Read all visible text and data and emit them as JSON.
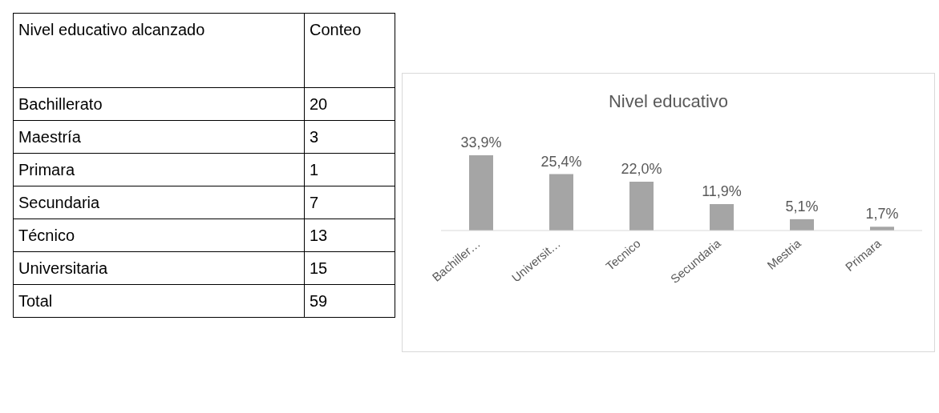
{
  "chart_data": [
    {
      "type": "other",
      "annotations": [
        "Nivel educativo alcanzado",
        "Conteo"
      ],
      "categories": [
        "Bachillerato",
        "Maestría",
        "Primara",
        "Secundaria",
        "Técnico",
        "Universitaria",
        "Total"
      ],
      "values": [
        20,
        3,
        1,
        7,
        13,
        15,
        59
      ],
      "data_labels": true
    },
    {
      "type": "bar",
      "title": "Nivel educativo",
      "categories": [
        "Bachiller…",
        "Universit…",
        "Tecnico",
        "Secundaria",
        "Mestria",
        "Primara"
      ],
      "values": [
        33.9,
        25.4,
        22.0,
        11.9,
        5.1,
        1.7
      ],
      "value_labels": [
        "33,9%",
        "25,4%",
        "22,0%",
        "11,9%",
        "5,1%",
        "1,7%"
      ],
      "color": "#a5a5a5",
      "grid": false,
      "legend": false
    }
  ]
}
